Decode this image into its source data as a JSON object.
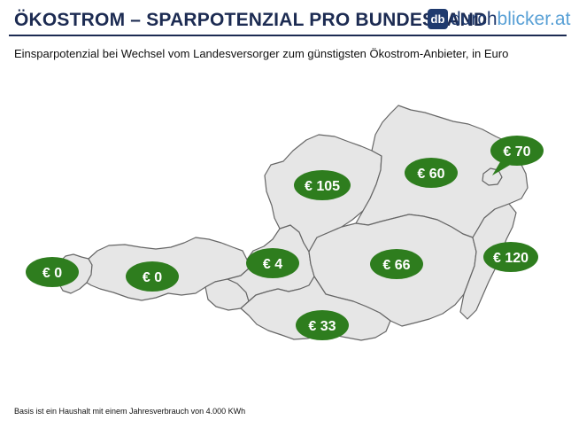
{
  "header": {
    "title": "ÖKOSTROM – SPARPOTENZIAL PRO BUNDESLAND",
    "logo_badge": "db",
    "logo_part1": "durch",
    "logo_part2": "blicker.at"
  },
  "subtitle": "Einsparpotenzial  bei Wechsel vom Landesversorger  zum günstigsten Ökostrom-Anbieter,  in Euro",
  "footnote": "Basis ist ein Haushalt mit einem Jahresverbrauch von 4.000 KWh",
  "colors": {
    "title": "#1c2b52",
    "bubble": "#2e7d1e",
    "bubble_text": "#ffffff",
    "map_fill": "#e6e6e6",
    "map_stroke": "#666666"
  },
  "regions": [
    {
      "id": "vorarlberg",
      "label": "€ 0"
    },
    {
      "id": "tirol",
      "label": "€ 0"
    },
    {
      "id": "salzburg",
      "label": "€ 4"
    },
    {
      "id": "oberoesterreich",
      "label": "€ 105"
    },
    {
      "id": "niederoesterreich",
      "label": "€ 60"
    },
    {
      "id": "wien",
      "label": "€ 70"
    },
    {
      "id": "steiermark",
      "label": "€ 66"
    },
    {
      "id": "burgenland",
      "label": "€ 120"
    },
    {
      "id": "kaernten",
      "label": "€ 33"
    }
  ]
}
